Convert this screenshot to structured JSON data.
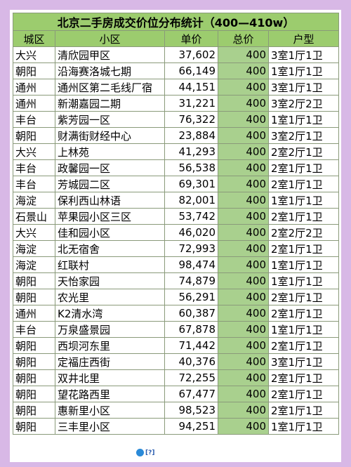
{
  "title": "北京二手房成交价位分布统计（400—410w）",
  "headers": [
    "城区",
    "小区",
    "单价",
    "总价",
    "户型"
  ],
  "rows": [
    {
      "district": "大兴",
      "name": "清欣园甲区",
      "price": "37,602",
      "total": "400",
      "type": "3室1厅1卫"
    },
    {
      "district": "朝阳",
      "name": "沿海赛洛城七期",
      "price": "66,149",
      "total": "400",
      "type": "1室1厅1卫"
    },
    {
      "district": "通州",
      "name": "通州区第二毛线厂宿",
      "price": "44,151",
      "total": "400",
      "type": "3室1厅1卫"
    },
    {
      "district": "通州",
      "name": "新潮嘉园二期",
      "price": "31,221",
      "total": "400",
      "type": "3室2厅2卫"
    },
    {
      "district": "丰台",
      "name": "紫芳园一区",
      "price": "76,322",
      "total": "400",
      "type": "1室1厅1卫"
    },
    {
      "district": "朝阳",
      "name": "财满街财经中心",
      "price": "23,884",
      "total": "400",
      "type": "3室2厅1卫"
    },
    {
      "district": "大兴",
      "name": "上林苑",
      "price": "41,293",
      "total": "400",
      "type": "2室2厅1卫"
    },
    {
      "district": "丰台",
      "name": "政馨园一区",
      "price": "56,538",
      "total": "400",
      "type": "2室1厅1卫"
    },
    {
      "district": "丰台",
      "name": "芳城园二区",
      "price": "69,301",
      "total": "400",
      "type": "2室1厅1卫"
    },
    {
      "district": "海淀",
      "name": "保利西山林语",
      "price": "82,001",
      "total": "400",
      "type": "1室1厅1卫"
    },
    {
      "district": "石景山",
      "name": "苹果园小区三区",
      "price": "53,742",
      "total": "400",
      "type": "2室1厅1卫"
    },
    {
      "district": "大兴",
      "name": "佳和园小区",
      "price": "46,020",
      "total": "400",
      "type": "2室2厅2卫"
    },
    {
      "district": "海淀",
      "name": "北无宿舍",
      "price": "72,993",
      "total": "400",
      "type": "2室1厅1卫"
    },
    {
      "district": "海淀",
      "name": "红联村",
      "price": "98,474",
      "total": "400",
      "type": "1室1厅1卫"
    },
    {
      "district": "朝阳",
      "name": "天怡家园",
      "price": "74,879",
      "total": "400",
      "type": "1室1厅1卫"
    },
    {
      "district": "朝阳",
      "name": "农光里",
      "price": "56,291",
      "total": "400",
      "type": "2室1厅1卫"
    },
    {
      "district": "通州",
      "name": "K2清水湾",
      "price": "60,387",
      "total": "400",
      "type": "2室1厅1卫"
    },
    {
      "district": "丰台",
      "name": "万泉盛景园",
      "price": "67,878",
      "total": "400",
      "type": "1室1厅1卫"
    },
    {
      "district": "朝阳",
      "name": "西坝河东里",
      "price": "71,442",
      "total": "400",
      "type": "2室1厅1卫"
    },
    {
      "district": "朝阳",
      "name": "定福庄西街",
      "price": "40,376",
      "total": "400",
      "type": "3室1厅1卫"
    },
    {
      "district": "朝阳",
      "name": "双井北里",
      "price": "72,255",
      "total": "400",
      "type": "2室1厅1卫"
    },
    {
      "district": "朝阳",
      "name": "望花路西里",
      "price": "67,477",
      "total": "400",
      "type": "2室1厅1卫"
    },
    {
      "district": "朝阳",
      "name": "惠新里小区",
      "price": "98,523",
      "total": "400",
      "type": "2室1厅1卫"
    },
    {
      "district": "朝阳",
      "name": "三丰里小区",
      "price": "94,251",
      "total": "400",
      "type": "1室1厅1卫"
    }
  ],
  "watermark": "[?]",
  "colors": {
    "background": "#d8b8e6",
    "header_fill": "#9ccc6e",
    "total_fill": "#a9d08e"
  }
}
